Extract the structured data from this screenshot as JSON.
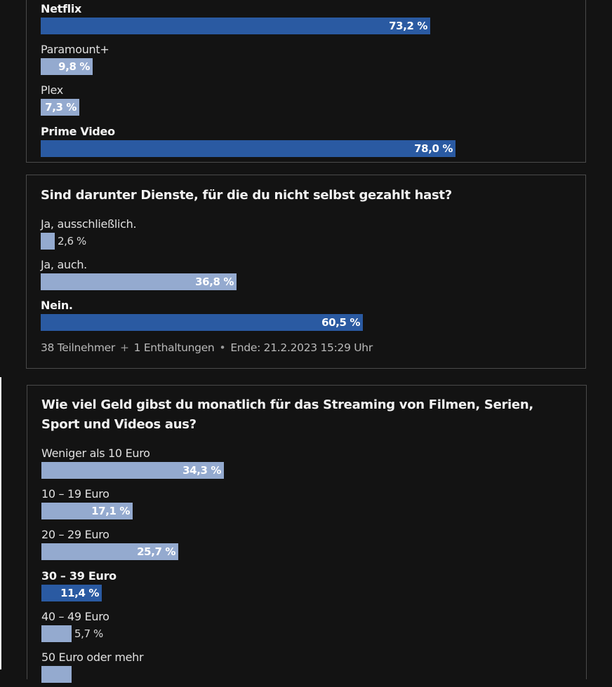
{
  "polls": [
    {
      "id": "poll-1",
      "title": "",
      "options": [
        {
          "label": "Netflix",
          "percent": 73.2,
          "percent_text": "73,2 %",
          "leading": true
        },
        {
          "label": "Paramount+",
          "percent": 9.8,
          "percent_text": "9,8 %",
          "leading": false
        },
        {
          "label": "Plex",
          "percent": 7.3,
          "percent_text": "7,3 %",
          "leading": false
        },
        {
          "label": "Prime Video",
          "percent": 78.0,
          "percent_text": "78,0 %",
          "leading": true
        }
      ]
    },
    {
      "id": "poll-2",
      "title": "Sind darunter Dienste, für die du nicht selbst gezahlt hast?",
      "options": [
        {
          "label": "Ja, ausschließlich.",
          "percent": 2.6,
          "percent_text": "2,6 %",
          "leading": false
        },
        {
          "label": "Ja, auch.",
          "percent": 36.8,
          "percent_text": "36,8 %",
          "leading": false
        },
        {
          "label": "Nein.",
          "percent": 60.5,
          "percent_text": "60,5 %",
          "leading": true
        }
      ],
      "meta": {
        "participants": "38 Teilnehmer",
        "separator_plus": "+",
        "abstentions": "1 Enthaltungen",
        "separator_dot": "•",
        "end": "Ende: 21.2.2023 15:29 Uhr"
      }
    },
    {
      "id": "poll-3",
      "title": "Wie viel Geld gibst du monatlich für das Streaming von Filmen, Serien, Sport und Videos aus?",
      "options": [
        {
          "label": "Weniger als 10 Euro",
          "percent": 34.3,
          "percent_text": "34,3 %",
          "leading": false
        },
        {
          "label": "10 – 19 Euro",
          "percent": 17.1,
          "percent_text": "17,1 %",
          "leading": false
        },
        {
          "label": "20 – 29 Euro",
          "percent": 25.7,
          "percent_text": "25,7 %",
          "leading": false
        },
        {
          "label": "30 – 39 Euro",
          "percent": 11.4,
          "percent_text": "11,4 %",
          "leading": true
        },
        {
          "label": "40 – 49 Euro",
          "percent": 5.7,
          "percent_text": "5,7 %",
          "leading": false
        },
        {
          "label": "50 Euro oder mehr",
          "percent": 5.7,
          "percent_text": "",
          "leading": false
        }
      ]
    }
  ],
  "colors": {
    "background": "#131313",
    "border": "#4a4a4a",
    "bar_default": "#94aacf",
    "bar_leading": "#2a5aa2"
  }
}
